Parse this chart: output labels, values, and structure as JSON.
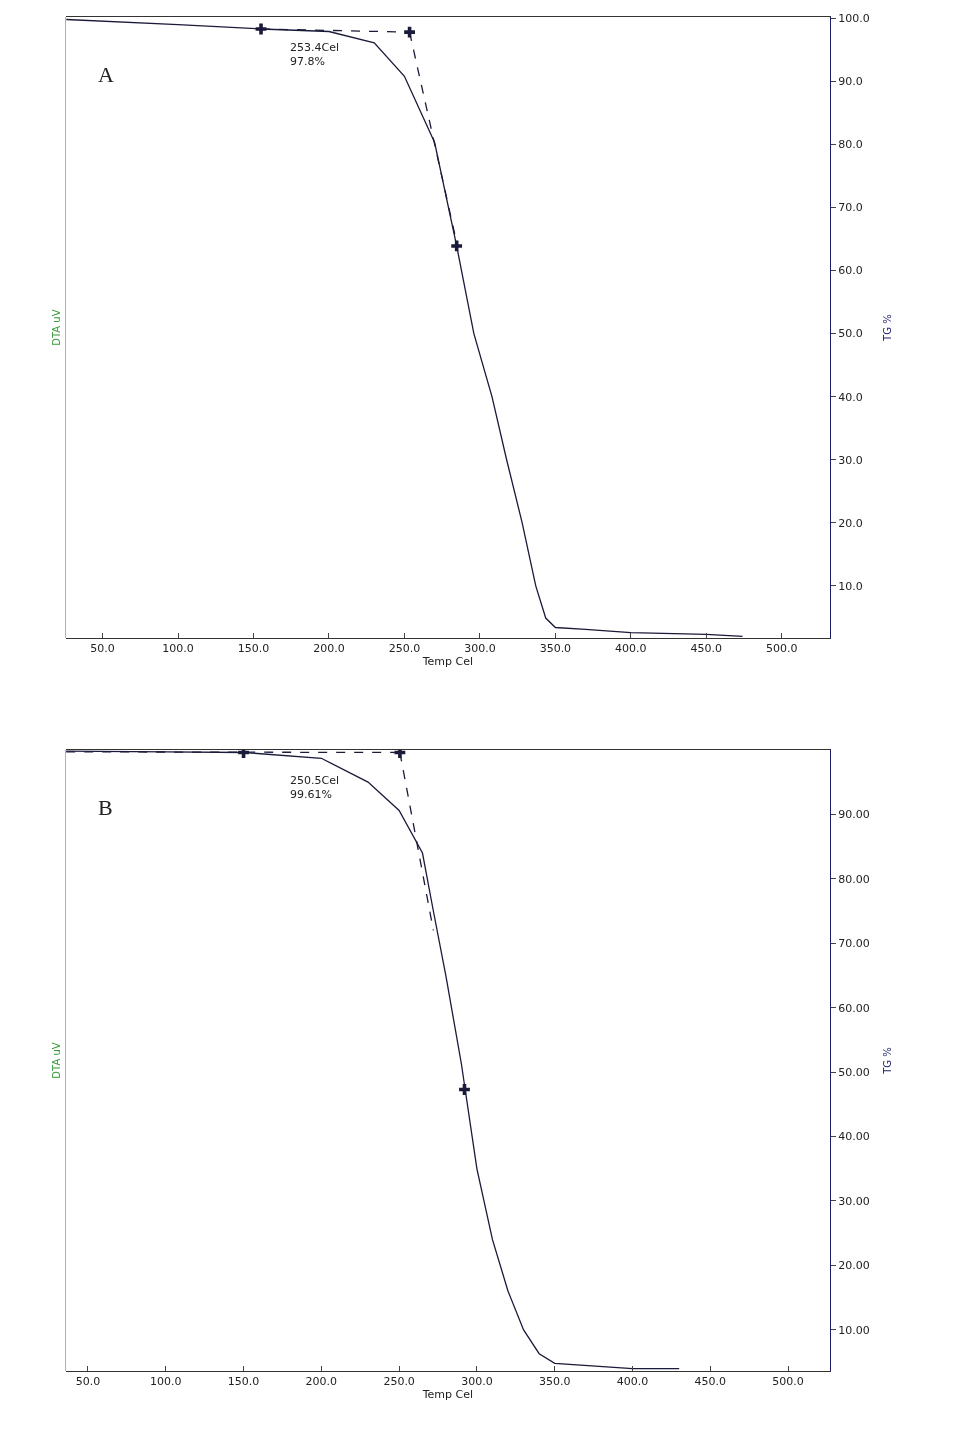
{
  "chart_data": [
    {
      "type": "line",
      "title": "A",
      "xlabel": "Temp Cel",
      "ylabel": "DTA uV",
      "y2label": "TG %",
      "xlim": [
        25.5,
        532
      ],
      "xticks": [
        {
          "value": 50,
          "label": "50.0"
        },
        {
          "value": 100,
          "label": "100.0"
        },
        {
          "value": 150,
          "label": "150.0"
        },
        {
          "value": 200,
          "label": "200.0"
        },
        {
          "value": 250,
          "label": "250.0"
        },
        {
          "value": 300,
          "label": "300.0"
        },
        {
          "value": 350,
          "label": "350.0"
        },
        {
          "value": 400,
          "label": "400.0"
        },
        {
          "value": 450,
          "label": "450.0"
        },
        {
          "value": 500,
          "label": "500.0"
        }
      ],
      "y2lim": [
        1.7,
        100.2
      ],
      "y2ticks": [
        {
          "value": 10,
          "label": "10.0"
        },
        {
          "value": 20,
          "label": "20.0"
        },
        {
          "value": 30,
          "label": "30.0"
        },
        {
          "value": 40,
          "label": "40.0"
        },
        {
          "value": 50,
          "label": "50.0"
        },
        {
          "value": 60,
          "label": "60.0"
        },
        {
          "value": 70,
          "label": "70.0"
        },
        {
          "value": 80,
          "label": "80.0"
        },
        {
          "value": 90,
          "label": "90.0"
        },
        {
          "value": 100,
          "label": "100.0"
        }
      ],
      "annotations": [
        "253.4Cel\n97.8%"
      ],
      "series": [
        {
          "axis": "y2",
          "color": "#1a1a3a",
          "line_style": "solid",
          "marker": "none",
          "x": [
            26,
            100,
            155,
            200,
            230,
            250,
            270,
            284.6,
            296,
            308,
            317.7,
            328,
            337,
            343.6,
            350,
            370,
            400,
            450,
            474
          ],
          "values": [
            99.8,
            99.0,
            98.3,
            97.9,
            96.1,
            90.8,
            80.3,
            63.9,
            50,
            40,
            30,
            20,
            10,
            4.9,
            3.4,
            3.1,
            2.6,
            2.3,
            2.0
          ]
        },
        {
          "axis": "y2",
          "color": "#1a1a3a",
          "line_style": "dashed",
          "marker": "none",
          "x": [
            155,
            253.4
          ],
          "values": [
            98.3,
            97.8
          ]
        },
        {
          "axis": "y2",
          "color": "#1a1a3a",
          "line_style": "dashed",
          "marker": "none",
          "x": [
            253.4,
            285
          ],
          "values": [
            97.8,
            64
          ]
        },
        {
          "type": "scatter",
          "axis": "y2",
          "color": "#1a1a3a",
          "marker": "cross",
          "x": [
            155,
            253.4,
            284.6
          ],
          "values": [
            98.3,
            97.8,
            63.9
          ]
        }
      ]
    },
    {
      "type": "line",
      "title": "B",
      "xlabel": "Temp Cel",
      "ylabel": "DTA uV",
      "y2label": "TG %",
      "xlim": [
        35.6,
        527
      ],
      "xticks": [
        {
          "value": 50,
          "label": "50.0"
        },
        {
          "value": 100,
          "label": "100.0"
        },
        {
          "value": 150,
          "label": "150.0"
        },
        {
          "value": 200,
          "label": "200.0"
        },
        {
          "value": 250,
          "label": "250.0"
        },
        {
          "value": 300,
          "label": "300.0"
        },
        {
          "value": 350,
          "label": "350.0"
        },
        {
          "value": 400,
          "label": "400.0"
        },
        {
          "value": 450,
          "label": "450.0"
        },
        {
          "value": 500,
          "label": "500.0"
        }
      ],
      "y2lim": [
        3.6,
        100
      ],
      "y2ticks": [
        {
          "value": 10,
          "label": "10.00"
        },
        {
          "value": 20,
          "label": "20.00"
        },
        {
          "value": 30,
          "label": "30.00"
        },
        {
          "value": 40,
          "label": "40.00"
        },
        {
          "value": 50,
          "label": "50.00"
        },
        {
          "value": 60,
          "label": "60.00"
        },
        {
          "value": 70,
          "label": "70.00"
        },
        {
          "value": 80,
          "label": "80.00"
        },
        {
          "value": 90,
          "label": "90.00"
        }
      ],
      "annotations": [
        "250.5Cel\n99.61%"
      ],
      "series": [
        {
          "axis": "y2",
          "color": "#1a1a3a",
          "line_style": "solid",
          "marker": "none",
          "x": [
            36,
            100,
            150,
            200,
            230,
            250,
            265,
            272,
            280,
            290,
            300,
            310,
            320,
            330,
            340,
            350,
            400,
            430
          ],
          "values": [
            99.8,
            99.7,
            99.6,
            98.7,
            95,
            90.6,
            84,
            75,
            65,
            51.3,
            35,
            24,
            16,
            10,
            6.3,
            4.8,
            4.0,
            4.0
          ]
        },
        {
          "axis": "y2",
          "color": "#1a1a3a",
          "line_style": "dashed",
          "marker": "none",
          "x": [
            36,
            250.5
          ],
          "values": [
            99.7,
            99.6
          ]
        },
        {
          "axis": "y2",
          "color": "#1a1a3a",
          "line_style": "dashed",
          "marker": "none",
          "x": [
            250.5,
            272
          ],
          "values": [
            99.6,
            72
          ]
        },
        {
          "type": "scatter",
          "axis": "y2",
          "color": "#1a1a3a",
          "marker": "cross",
          "x": [
            150,
            250.5,
            292
          ],
          "values": [
            99.6,
            99.6,
            47.3
          ]
        }
      ]
    }
  ]
}
